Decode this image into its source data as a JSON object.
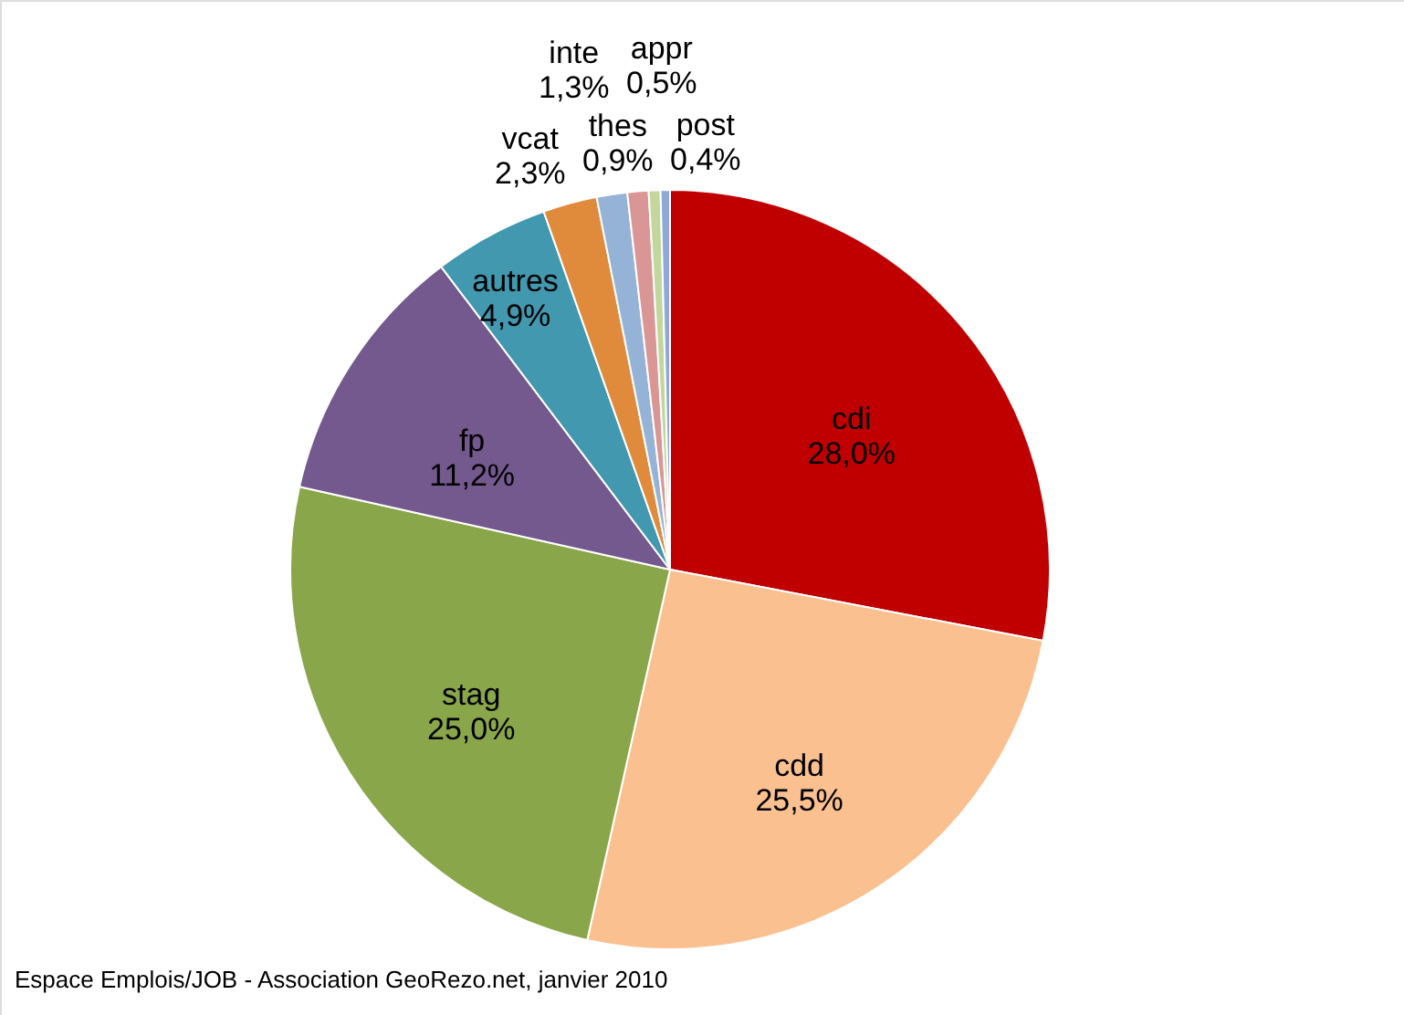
{
  "chart_data": {
    "type": "pie",
    "categories": [
      "cdi",
      "cdd",
      "stag",
      "fp",
      "autres",
      "vcat",
      "inte",
      "thes",
      "appr",
      "post"
    ],
    "values": [
      28.0,
      25.5,
      25.0,
      11.2,
      4.9,
      2.3,
      1.3,
      0.9,
      0.5,
      0.4
    ],
    "value_labels": [
      "28,0%",
      "25,5%",
      "25,0%",
      "11,2%",
      "4,9%",
      "2,3%",
      "1,3%",
      "0,9%",
      "0,5%",
      "0,4%"
    ],
    "colors": [
      "#c00000",
      "#fac090",
      "#8aa64a",
      "#74598e",
      "#4198af",
      "#e08a3c",
      "#95b3d7",
      "#d99694",
      "#c3d69b",
      "#8ea8d8"
    ],
    "annotations": [
      "Espace Emplois/JOB - Association GeoRezo.net, janvier 2010"
    ]
  }
}
